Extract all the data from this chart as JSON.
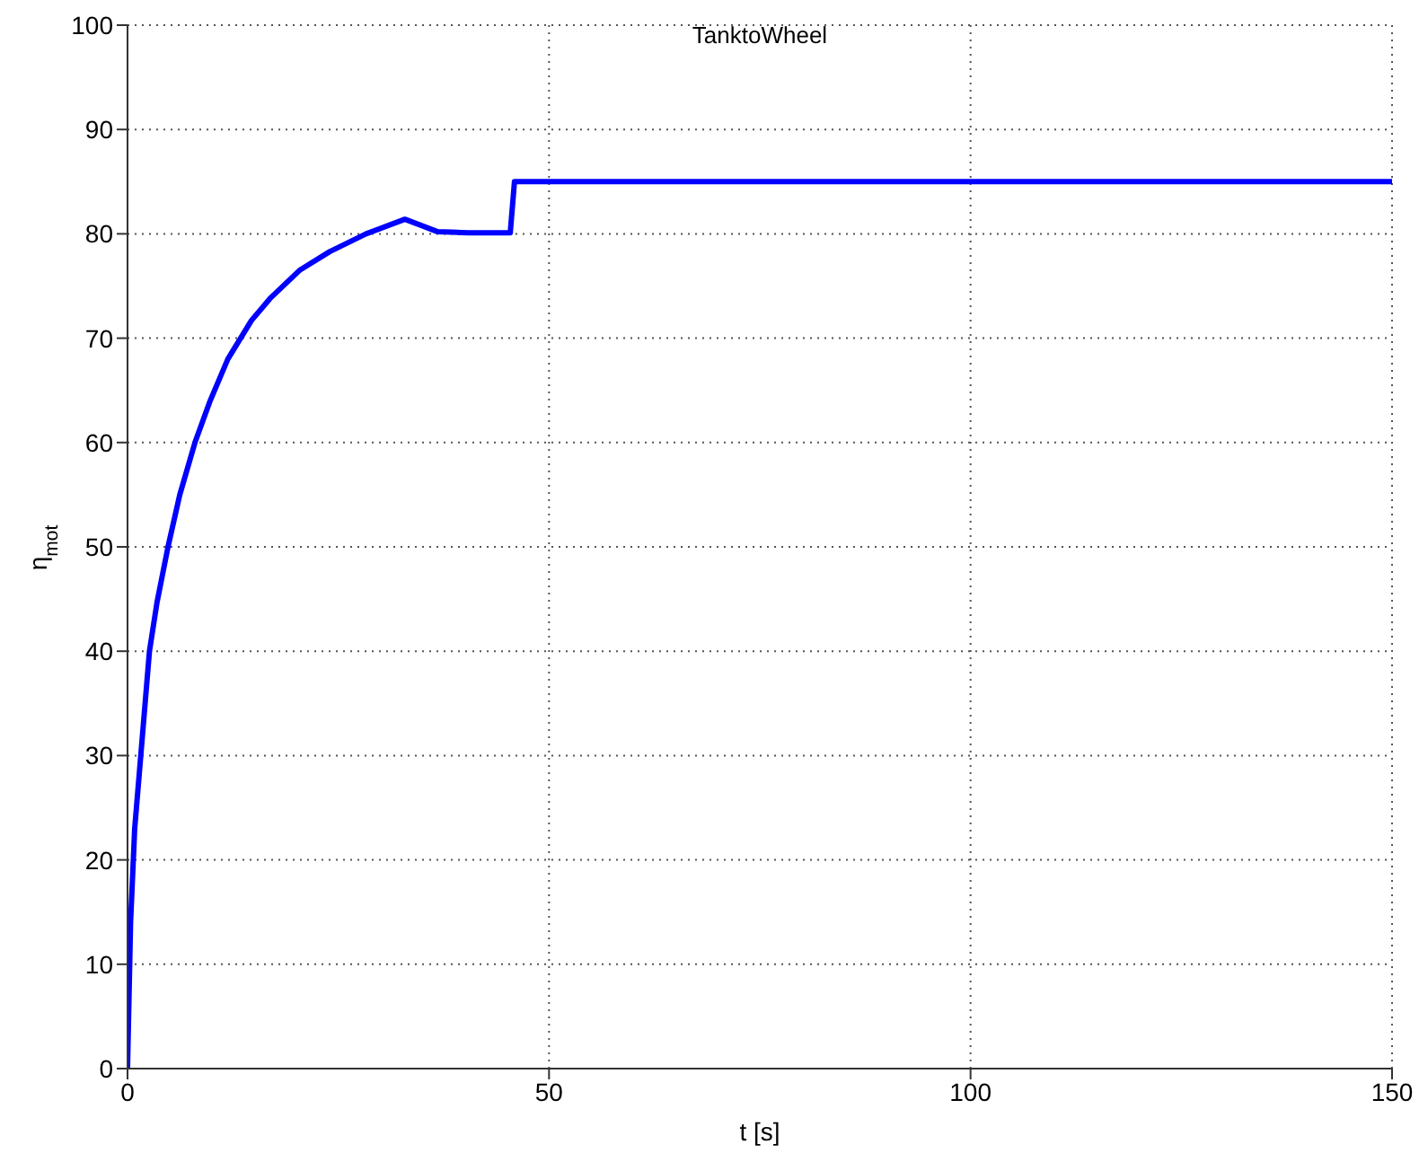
{
  "chart_data": {
    "type": "line",
    "title": "TanktoWheel",
    "xlabel": "t [s]",
    "ylabel": "η$_{mot}$",
    "x": [
      0,
      0.36,
      0.85,
      1.57,
      2.6,
      3.5,
      4.8,
      6.2,
      8.0,
      9.8,
      11.9,
      14.7,
      16.9,
      20.4,
      24,
      28.3,
      32.9,
      36.8,
      40.4,
      45.4,
      45.9,
      150
    ],
    "series": [
      {
        "color": "#0000ff",
        "values": [
          0,
          14,
          23,
          30,
          40,
          44.7,
          50,
          55,
          60,
          64,
          68,
          71.7,
          73.8,
          76.5,
          78.3,
          80,
          81.4,
          80.2,
          80.1,
          80.1,
          85,
          85
        ]
      }
    ],
    "xlim": [
      0,
      150
    ],
    "xticks": [
      0,
      50,
      100,
      150
    ],
    "ylim": [
      0,
      100
    ],
    "yticks": [
      0,
      10,
      20,
      30,
      40,
      50,
      60,
      70,
      80,
      90,
      100
    ],
    "grid": true,
    "line_style": "solid",
    "marker": "none"
  }
}
